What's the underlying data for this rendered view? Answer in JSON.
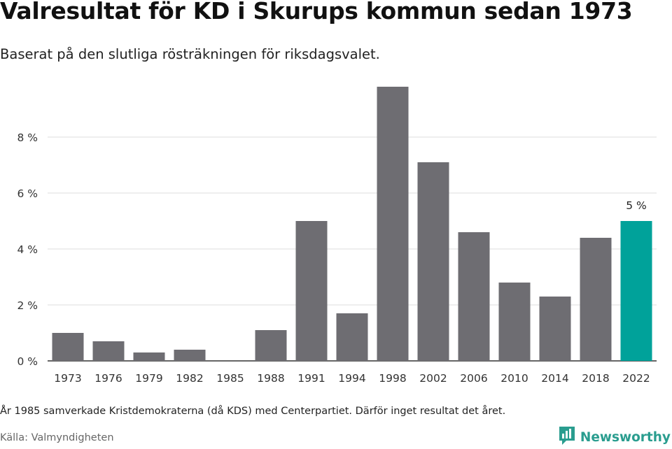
{
  "title": "Valresultat för KD i Skurups kommun sedan 1973",
  "subtitle": "Baserat på den slutliga rösträkningen för riksdagsvalet.",
  "note": "År 1985 samverkade Kristdemokraterna (då KDS) med Centerpartiet. Därför inget resultat det året.",
  "source": "Källa: Valmyndigheten",
  "brand": {
    "name": "Newsworthy",
    "icon": "newsworthy-logo-icon"
  },
  "colors": {
    "bar": "#6e6d72",
    "highlight": "#00a29a",
    "grid": "#dddddd",
    "axis": "#333333",
    "brand": "#2a9d8f"
  },
  "chart_data": {
    "type": "bar",
    "categories": [
      "1973",
      "1976",
      "1979",
      "1982",
      "1985",
      "1988",
      "1991",
      "1994",
      "1998",
      "2002",
      "2006",
      "2010",
      "2014",
      "2018",
      "2022"
    ],
    "values": [
      1.0,
      0.7,
      0.3,
      0.4,
      null,
      1.1,
      5.0,
      1.7,
      9.8,
      7.1,
      4.6,
      2.8,
      2.3,
      4.4,
      5.0
    ],
    "highlight_index": 14,
    "highlight_label": "5 %",
    "yticks": [
      0,
      2,
      4,
      6,
      8
    ],
    "ytick_labels": [
      "0 %",
      "2 %",
      "4 %",
      "6 %",
      "8 %"
    ],
    "ylim": [
      0,
      10
    ],
    "grid": true
  }
}
